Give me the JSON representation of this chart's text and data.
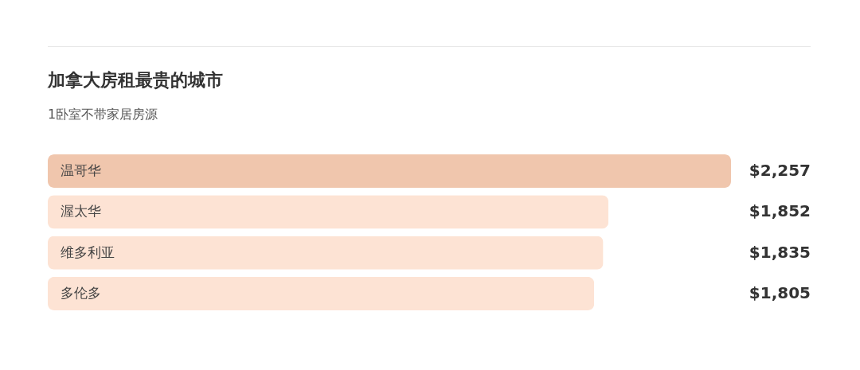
{
  "chart_data": {
    "type": "bar",
    "orientation": "horizontal",
    "title": "加拿大房租最贵的城市",
    "subtitle": "1卧室不带家居房源",
    "categories": [
      "温哥华",
      "渥太华",
      "维多利亚",
      "多伦多"
    ],
    "values": [
      2257,
      1852,
      1835,
      1805
    ],
    "colors": [
      "#f0c6ad",
      "#fde3d4",
      "#fde3d4",
      "#fde3d4"
    ],
    "value_labels": [
      "$2,257",
      "$1,852",
      "$1,835",
      "$1,805"
    ]
  }
}
